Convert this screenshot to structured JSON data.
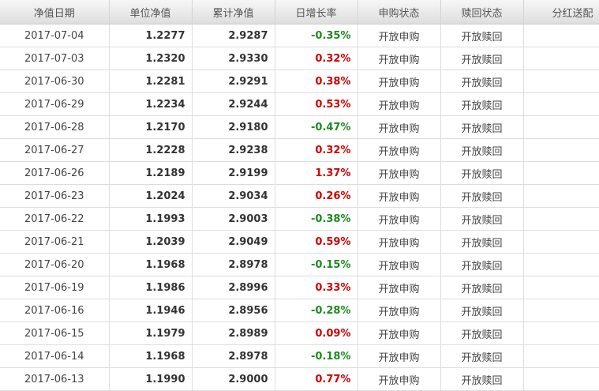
{
  "colors": {
    "up": "#d40000",
    "down": "#1e8a1e"
  },
  "headers": [
    "净值日期",
    "单位净值",
    "累计净值",
    "日增长率",
    "申购状态",
    "赎回状态",
    "分红送配"
  ],
  "rows": [
    {
      "date": "2017-07-04",
      "nav": "1.2277",
      "acc": "2.9287",
      "chg": "-0.35%",
      "buy": "开放申购",
      "redeem": "开放赎回",
      "div": ""
    },
    {
      "date": "2017-07-03",
      "nav": "1.2320",
      "acc": "2.9330",
      "chg": "0.32%",
      "buy": "开放申购",
      "redeem": "开放赎回",
      "div": ""
    },
    {
      "date": "2017-06-30",
      "nav": "1.2281",
      "acc": "2.9291",
      "chg": "0.38%",
      "buy": "开放申购",
      "redeem": "开放赎回",
      "div": ""
    },
    {
      "date": "2017-06-29",
      "nav": "1.2234",
      "acc": "2.9244",
      "chg": "0.53%",
      "buy": "开放申购",
      "redeem": "开放赎回",
      "div": ""
    },
    {
      "date": "2017-06-28",
      "nav": "1.2170",
      "acc": "2.9180",
      "chg": "-0.47%",
      "buy": "开放申购",
      "redeem": "开放赎回",
      "div": ""
    },
    {
      "date": "2017-06-27",
      "nav": "1.2228",
      "acc": "2.9238",
      "chg": "0.32%",
      "buy": "开放申购",
      "redeem": "开放赎回",
      "div": ""
    },
    {
      "date": "2017-06-26",
      "nav": "1.2189",
      "acc": "2.9199",
      "chg": "1.37%",
      "buy": "开放申购",
      "redeem": "开放赎回",
      "div": ""
    },
    {
      "date": "2017-06-23",
      "nav": "1.2024",
      "acc": "2.9034",
      "chg": "0.26%",
      "buy": "开放申购",
      "redeem": "开放赎回",
      "div": ""
    },
    {
      "date": "2017-06-22",
      "nav": "1.1993",
      "acc": "2.9003",
      "chg": "-0.38%",
      "buy": "开放申购",
      "redeem": "开放赎回",
      "div": ""
    },
    {
      "date": "2017-06-21",
      "nav": "1.2039",
      "acc": "2.9049",
      "chg": "0.59%",
      "buy": "开放申购",
      "redeem": "开放赎回",
      "div": ""
    },
    {
      "date": "2017-06-20",
      "nav": "1.1968",
      "acc": "2.8978",
      "chg": "-0.15%",
      "buy": "开放申购",
      "redeem": "开放赎回",
      "div": ""
    },
    {
      "date": "2017-06-19",
      "nav": "1.1986",
      "acc": "2.8996",
      "chg": "0.33%",
      "buy": "开放申购",
      "redeem": "开放赎回",
      "div": ""
    },
    {
      "date": "2017-06-16",
      "nav": "1.1946",
      "acc": "2.8956",
      "chg": "-0.28%",
      "buy": "开放申购",
      "redeem": "开放赎回",
      "div": ""
    },
    {
      "date": "2017-06-15",
      "nav": "1.1979",
      "acc": "2.8989",
      "chg": "0.09%",
      "buy": "开放申购",
      "redeem": "开放赎回",
      "div": ""
    },
    {
      "date": "2017-06-14",
      "nav": "1.1968",
      "acc": "2.8978",
      "chg": "-0.18%",
      "buy": "开放申购",
      "redeem": "开放赎回",
      "div": ""
    },
    {
      "date": "2017-06-13",
      "nav": "1.1990",
      "acc": "2.9000",
      "chg": "0.77%",
      "buy": "开放申购",
      "redeem": "开放赎回",
      "div": ""
    }
  ]
}
